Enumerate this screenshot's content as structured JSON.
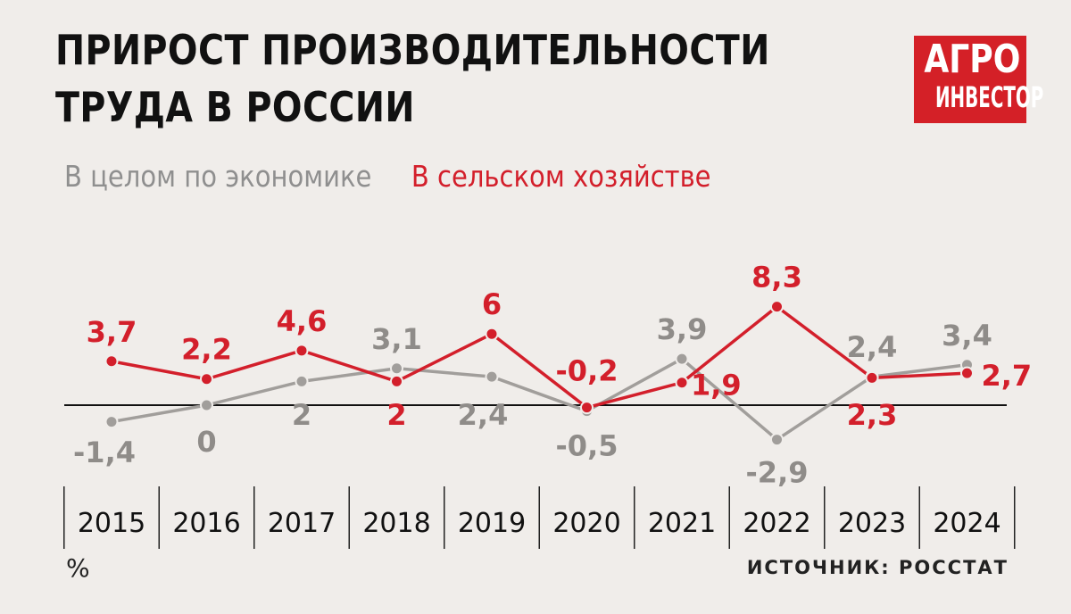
{
  "header": {
    "title_line1": "ПРИРОСТ ПРОИЗВОДИТЕЛЬНОСТИ",
    "title_line2": "ТРУДА В РОССИИ"
  },
  "logo": {
    "line1": "АГРО",
    "line2": "ИНВЕСТОР"
  },
  "footer": {
    "unit": "%",
    "source": "ИСТОЧНИК: РОССТАТ"
  },
  "colors": {
    "economy": "#a19e9b",
    "agriculture": "#d31f2b",
    "axis": "#111111"
  },
  "chart_data": {
    "type": "line",
    "x": [
      "2015",
      "2016",
      "2017",
      "2018",
      "2019",
      "2020",
      "2021",
      "2022",
      "2023",
      "2024"
    ],
    "series": [
      {
        "name": "В целом по экономике",
        "values": [
          -1.4,
          0,
          2,
          3.1,
          2.4,
          -0.5,
          3.9,
          -2.9,
          2.4,
          3.4
        ],
        "labels": [
          "-1,4",
          "0",
          "2",
          "3,1",
          "2,4",
          "-0,5",
          "3,9",
          "-2,9",
          "2,4",
          "3,4"
        ]
      },
      {
        "name": "В сельском хозяйстве",
        "values": [
          3.7,
          2.2,
          4.6,
          2,
          6,
          -0.2,
          1.9,
          8.3,
          2.3,
          2.7
        ],
        "labels": [
          "3,7",
          "2,2",
          "4,6",
          "2",
          "6",
          "-0,2",
          "1,9",
          "8,3",
          "2,3",
          "2,7"
        ]
      }
    ],
    "legend": "top-left",
    "grid": false
  }
}
